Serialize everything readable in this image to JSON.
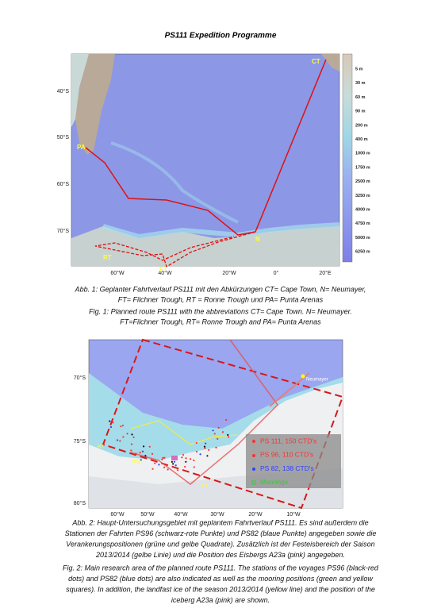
{
  "title": "PS111 Expedition Programme",
  "figure1": {
    "lat_labels": [
      "40°S",
      "50°S",
      "60°S",
      "70°S"
    ],
    "lon_labels": [
      "60°W",
      "40°W",
      "20°W",
      "0°",
      "20°E"
    ],
    "depth_legend": [
      "5 m",
      "30 m",
      "60 m",
      "90 m",
      "200 m",
      "400 m",
      "1000 m",
      "1750 m",
      "2500 m",
      "3250 m",
      "4000 m",
      "4750 m",
      "5000 m",
      "6250 m"
    ],
    "place_labels": [
      "CT",
      "PA",
      "N",
      "RT",
      "FT"
    ],
    "caption_de": [
      "Abb. 1: Geplanter Fahrtverlauf PS111 mit den Abkürzungen CT= Cape Town, N= Neumayer,",
      "FT= Filchner Trough, RT = Ronne Trough und PA= Punta Arenas"
    ],
    "caption_en": [
      "Fig. 1: Planned route PS111 with the abbreviations CT= Cape Town. N= Neumayer.",
      "FT=Filchner Trough, RT= Ronne Trough and PA= Punta Arenas"
    ]
  },
  "figure2": {
    "lat_labels": [
      "70°S",
      "75°S",
      "80°S"
    ],
    "lon_labels": [
      "60°W",
      "50°W",
      "40°W",
      "30°W",
      "20°W",
      "10°W"
    ],
    "legend": [
      "PS 111, 150 CTD's",
      "PS 96, 110 CTD's",
      "PS 82, 138 CTD's",
      "Moorings"
    ],
    "place_labels": [
      "Neumayer",
      "RT",
      "TRO",
      "FT"
    ],
    "caption_de": [
      "Abb. 2: Haupt-Untersuchungsgebiet mit geplantem Fahrtverlauf PS111. Es sind außerdem die",
      "Stationen der Fahrten PS96 (schwarz-rote Punkte) und PS82 (blaue Punkte) angegeben sowie die",
      "Verankerungspositionen (grüne und gelbe Quadrate). Zusätzlich ist der Festeisbereich der Saison",
      "2013/2014 (gelbe Linie) und die Position des Eisbergs A23a (pink) angegeben."
    ],
    "caption_en": [
      "Fig. 2: Main research area of the planned route PS111. The stations of the voyages PS96 (black-red",
      "dots) and PS82 (blue dots) are also indicated as well as the mooring positions (green and yellow",
      "squares). In addition, the landfast ice of the season 2013/2014 (yellow line) and the position of the",
      "iceberg A23a (pink) are shown."
    ]
  }
}
